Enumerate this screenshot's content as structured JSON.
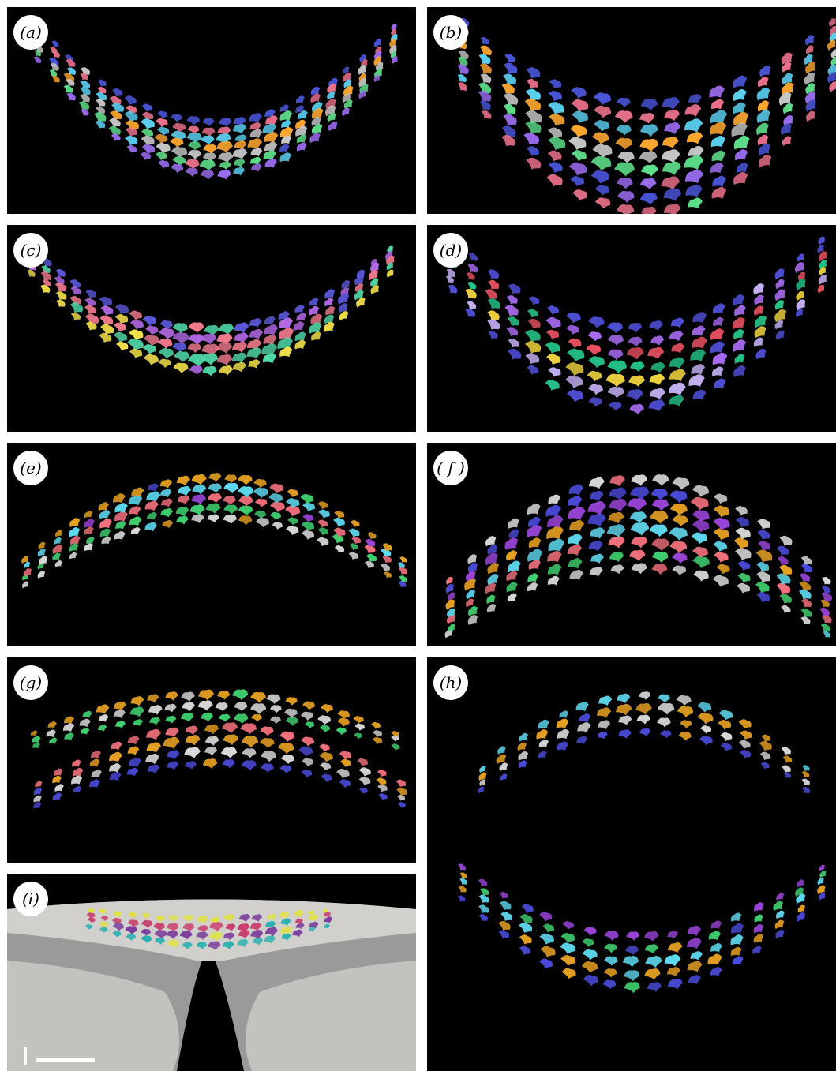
{
  "figure": {
    "panels": [
      {
        "id": "a",
        "label": "(a)",
        "style": "arc-up",
        "rows": 7
      },
      {
        "id": "b",
        "label": "(b)",
        "style": "arc-up-wide",
        "rows": 9
      },
      {
        "id": "c",
        "label": "(c)",
        "style": "arc-up",
        "rows": 5
      },
      {
        "id": "d",
        "label": "(d)",
        "style": "arc-up-wide",
        "rows": 7
      },
      {
        "id": "e",
        "label": "(e)",
        "style": "arc-down",
        "rows": 5
      },
      {
        "id": "f",
        "label": "( f )",
        "style": "arc-down-wide",
        "rows": 8
      },
      {
        "id": "g",
        "label": "(g)",
        "style": "double-arc",
        "rows": 6
      },
      {
        "id": "h",
        "label": "(h)",
        "style": "split",
        "rows": 6
      },
      {
        "id": "i",
        "label": "(i)",
        "style": "sem-gray",
        "rows": 4
      }
    ],
    "palette_a": [
      "#4a55d8",
      "#e8708a",
      "#5ad0f0",
      "#ffa830",
      "#c8c8c8",
      "#5ee08a",
      "#9b6cf0"
    ],
    "palette_c": [
      "#5a58d8",
      "#b46ae8",
      "#f07a8c",
      "#50d8a8",
      "#f2e04a"
    ],
    "palette_d": [
      "#4f4fd6",
      "#a86af0",
      "#e85060",
      "#25c48a",
      "#f5d840",
      "#c8b4f8"
    ],
    "palette_efgh": [
      "#4a4ad8",
      "#9a44d8",
      "#e6a022",
      "#5ed8ee",
      "#f0707c",
      "#40d070",
      "#d8d8d8",
      "#f5e050"
    ]
  }
}
